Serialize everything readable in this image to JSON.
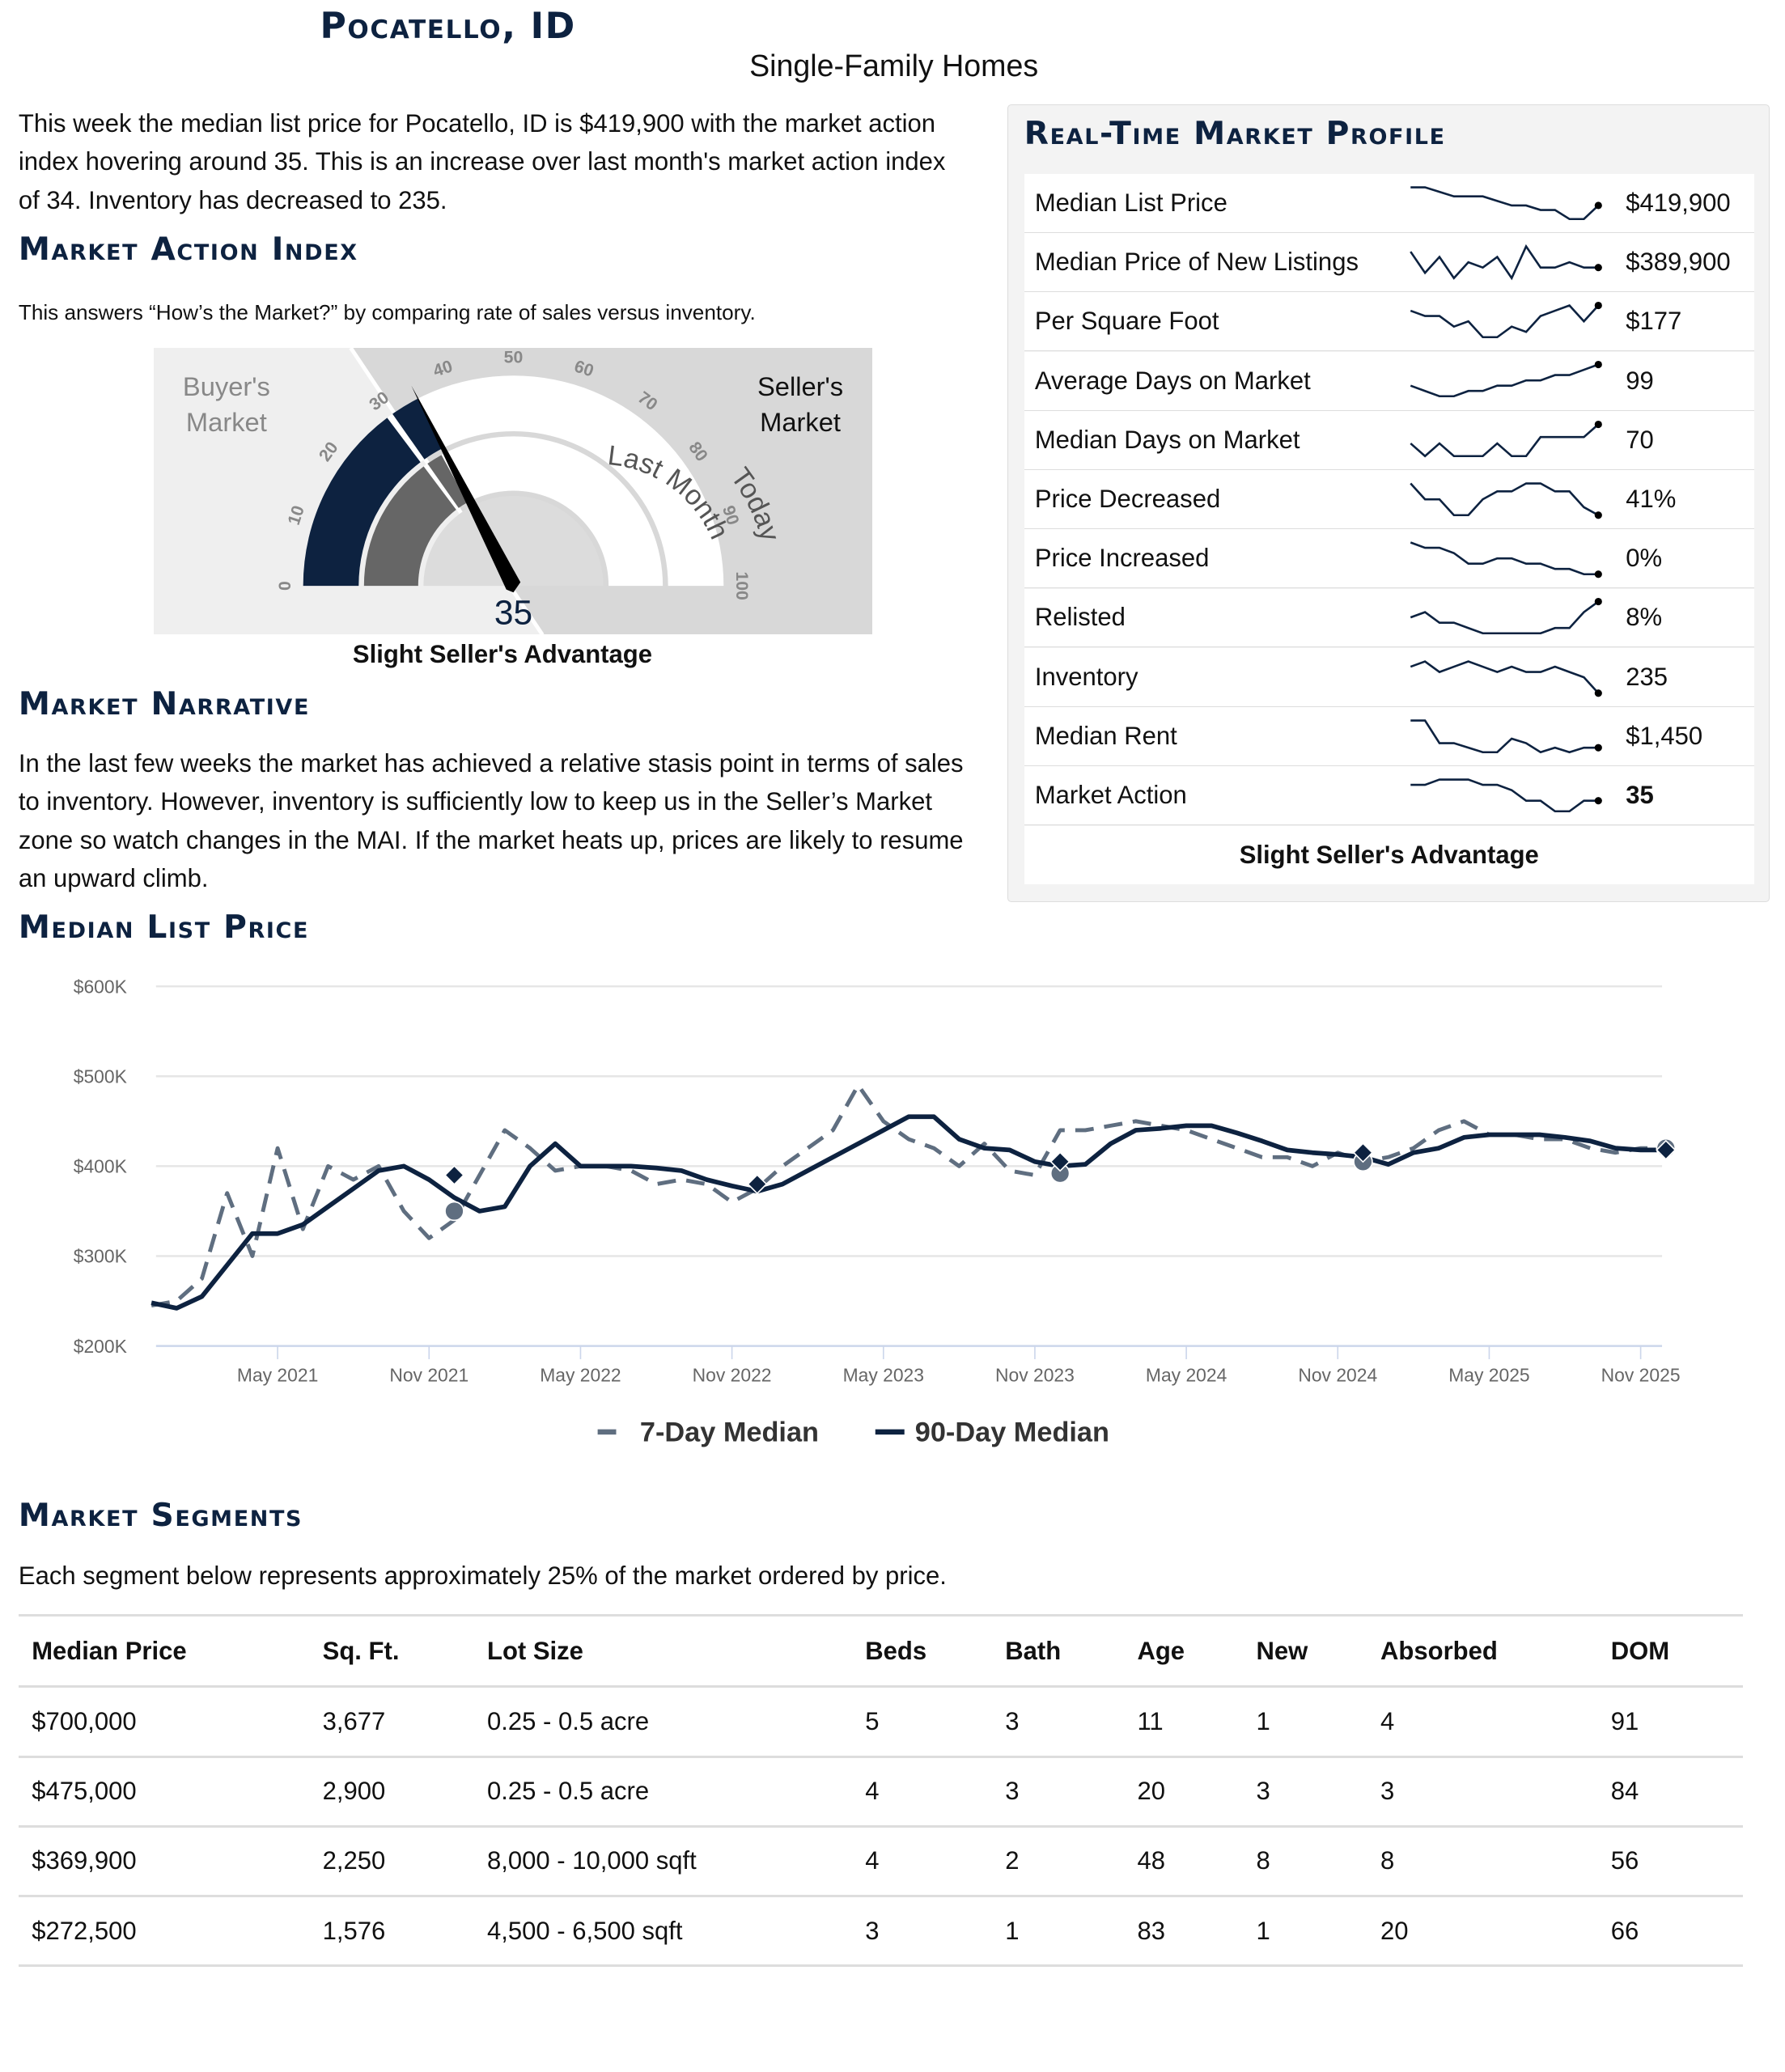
{
  "header": {
    "title": "Pocatello, ID",
    "subtitle": "Single-Family Homes"
  },
  "intro": "This week the median list price for Pocatello, ID is $419,900 with the market action index hovering around 35. This is an increase over last month's market action index of 34. Inventory has decreased to 235.",
  "mai": {
    "heading": "Market Action Index",
    "description": "This answers “How’s the Market?” by comparing rate of sales versus inventory.",
    "gauge": {
      "value": 35,
      "last_month": 34,
      "buyers_label_1": "Buyer's",
      "buyers_label_2": "Market",
      "sellers_label_1": "Seller's",
      "sellers_label_2": "Market",
      "last_month_label": "Last Month",
      "today_label": "Today",
      "ticks": [
        "0",
        "10",
        "20",
        "30",
        "40",
        "50",
        "60",
        "70",
        "80",
        "90",
        "100"
      ],
      "value_label": "35",
      "verdict": "Slight Seller's Advantage",
      "colors": {
        "today": "#0d2240",
        "last_month": "#666666"
      }
    }
  },
  "narrative": {
    "heading": "Market Narrative",
    "text": "In the last few weeks the market has achieved a relative stasis point in terms of sales to inventory. However, inventory is sufficiently low to keep us in the Seller’s Market zone so watch changes in the MAI. If the market heats up, prices are likely to resume an upward climb."
  },
  "profile": {
    "heading": "Real-Time Market Profile",
    "rows": [
      {
        "label": "Median List Price",
        "value": "$419,900",
        "trend": [
          8,
          8,
          7,
          6,
          6,
          6,
          5,
          4,
          4,
          3,
          3,
          1,
          1,
          4
        ]
      },
      {
        "label": "Median Price of New Listings",
        "value": "$389,900",
        "trend": [
          7,
          3,
          6,
          2,
          5,
          4,
          6,
          2,
          8,
          4,
          4,
          5,
          4,
          4
        ]
      },
      {
        "label": "Per Square Foot",
        "value": "$177",
        "trend": [
          6,
          5,
          5,
          3,
          4,
          1,
          1,
          3,
          2,
          5,
          6,
          7,
          4,
          7
        ]
      },
      {
        "label": "Average Days on Market",
        "value": "99",
        "trend": [
          3,
          2,
          1,
          1,
          2,
          2,
          3,
          3,
          4,
          4,
          5,
          5,
          6,
          7
        ]
      },
      {
        "label": "Median Days on Market",
        "value": "70",
        "trend": [
          3,
          1,
          3,
          1,
          1,
          1,
          3,
          1,
          1,
          4,
          4,
          4,
          4,
          6
        ]
      },
      {
        "label": "Price Decreased",
        "value": "41%",
        "trend": [
          6,
          4,
          4,
          2,
          2,
          4,
          5,
          5,
          6,
          6,
          5,
          5,
          3,
          2
        ]
      },
      {
        "label": "Price Increased",
        "value": "0%",
        "trend": [
          7,
          6,
          6,
          5,
          3,
          3,
          4,
          4,
          3,
          3,
          2,
          2,
          1,
          1
        ]
      },
      {
        "label": "Relisted",
        "value": "8%",
        "trend": [
          4,
          5,
          3,
          3,
          2,
          1,
          1,
          1,
          1,
          1,
          2,
          2,
          5,
          7
        ]
      },
      {
        "label": "Inventory",
        "value": "235",
        "trend": [
          5,
          6,
          4,
          5,
          6,
          5,
          4,
          5,
          4,
          4,
          5,
          4,
          3,
          0
        ]
      },
      {
        "label": "Median Rent",
        "value": "$1,450",
        "trend": [
          8,
          8,
          3,
          3,
          2,
          1,
          1,
          4,
          3,
          1,
          2,
          1,
          2,
          2
        ]
      },
      {
        "label": "Market Action",
        "value": "35",
        "trend": [
          6,
          6,
          7,
          7,
          7,
          6,
          6,
          5,
          3,
          3,
          1,
          1,
          3,
          3
        ]
      }
    ],
    "verdict": "Slight Seller's Advantage"
  },
  "price_chart": {
    "heading": "Median List Price"
  },
  "chart_data": {
    "type": "line",
    "ylim": [
      200000,
      600000
    ],
    "yticks": [
      "$200K",
      "$300K",
      "$400K",
      "$500K",
      "$600K"
    ],
    "ytick_values": [
      200000,
      300000,
      400000,
      500000,
      600000
    ],
    "xticks": [
      "May 2021",
      "Nov 2021",
      "May 2022",
      "Nov 2022",
      "May 2023",
      "Nov 2023",
      "May 2024",
      "Nov 2024",
      "May 2025",
      "Nov 2025"
    ],
    "xtick_dates": [
      "2021-05",
      "2021-11",
      "2022-05",
      "2022-11",
      "2023-05",
      "2023-11",
      "2024-05",
      "2024-11",
      "2025-05",
      "2025-11"
    ],
    "x": [
      "2020-12",
      "2021-01",
      "2021-02",
      "2021-03",
      "2021-04",
      "2021-05",
      "2021-06",
      "2021-07",
      "2021-08",
      "2021-09",
      "2021-10",
      "2021-11",
      "2021-12",
      "2022-01",
      "2022-02",
      "2022-03",
      "2022-04",
      "2022-05",
      "2022-06",
      "2022-07",
      "2022-08",
      "2022-09",
      "2022-10",
      "2022-11",
      "2022-12",
      "2023-01",
      "2023-02",
      "2023-03",
      "2023-04",
      "2023-05",
      "2023-06",
      "2023-07",
      "2023-08",
      "2023-09",
      "2023-10",
      "2023-11",
      "2023-12",
      "2024-01",
      "2024-02",
      "2024-03",
      "2024-04",
      "2024-05",
      "2024-06",
      "2024-07",
      "2024-08",
      "2024-09",
      "2024-10",
      "2024-11",
      "2024-12",
      "2025-01",
      "2025-02",
      "2025-03",
      "2025-04",
      "2025-05",
      "2025-06",
      "2025-07",
      "2025-08",
      "2025-09",
      "2025-10",
      "2025-11",
      "2025-12"
    ],
    "series": [
      {
        "name": "7-Day Median",
        "color": "#5f6e80",
        "dash": true,
        "values": [
          245000,
          250000,
          275000,
          370000,
          300000,
          420000,
          330000,
          400000,
          385000,
          400000,
          350000,
          320000,
          340000,
          390000,
          440000,
          420000,
          395000,
          400000,
          400000,
          395000,
          380000,
          385000,
          380000,
          360000,
          375000,
          400000,
          420000,
          440000,
          490000,
          450000,
          430000,
          420000,
          400000,
          425000,
          395000,
          390000,
          440000,
          440000,
          445000,
          450000,
          445000,
          440000,
          430000,
          420000,
          410000,
          410000,
          400000,
          415000,
          405000,
          410000,
          420000,
          440000,
          450000,
          435000,
          435000,
          430000,
          430000,
          420000,
          415000,
          420000,
          420000
        ]
      },
      {
        "name": "90-Day Median",
        "color": "#0d2240",
        "dash": false,
        "values": [
          248000,
          242000,
          255000,
          290000,
          325000,
          325000,
          335000,
          355000,
          375000,
          395000,
          400000,
          385000,
          365000,
          350000,
          355000,
          400000,
          425000,
          400000,
          400000,
          400000,
          398000,
          395000,
          385000,
          378000,
          372000,
          380000,
          395000,
          410000,
          425000,
          440000,
          455000,
          455000,
          430000,
          420000,
          418000,
          405000,
          400000,
          402000,
          425000,
          440000,
          442000,
          445000,
          445000,
          437000,
          428000,
          418000,
          415000,
          413000,
          410000,
          402000,
          415000,
          420000,
          432000,
          435000,
          435000,
          435000,
          432000,
          428000,
          420000,
          418000,
          418000
        ]
      }
    ],
    "markers": {
      "diamonds": [
        [
          "2021-12",
          390000
        ],
        [
          "2022-12",
          380000
        ],
        [
          "2023-12",
          405000
        ],
        [
          "2024-12",
          415000
        ],
        [
          "2025-12",
          418000
        ]
      ],
      "circles": [
        [
          "2021-12",
          350000
        ],
        [
          "2023-12",
          392000
        ],
        [
          "2024-12",
          405000
        ],
        [
          "2025-12",
          420000
        ]
      ]
    },
    "legend_position": "bottom",
    "grid": true
  },
  "segments": {
    "heading": "Market Segments",
    "description": "Each segment below represents approximately 25% of the market ordered by price.",
    "columns": [
      "Median Price",
      "Sq. Ft.",
      "Lot Size",
      "Beds",
      "Bath",
      "Age",
      "New",
      "Absorbed",
      "DOM"
    ],
    "rows": [
      [
        "$700,000",
        "3,677",
        "0.25 - 0.5 acre",
        "5",
        "3",
        "11",
        "1",
        "4",
        "91"
      ],
      [
        "$475,000",
        "2,900",
        "0.25 - 0.5 acre",
        "4",
        "3",
        "20",
        "3",
        "3",
        "84"
      ],
      [
        "$369,900",
        "2,250",
        "8,000 - 10,000 sqft",
        "4",
        "2",
        "48",
        "8",
        "8",
        "56"
      ],
      [
        "$272,500",
        "1,576",
        "4,500 - 6,500 sqft",
        "3",
        "1",
        "83",
        "1",
        "20",
        "66"
      ]
    ]
  }
}
